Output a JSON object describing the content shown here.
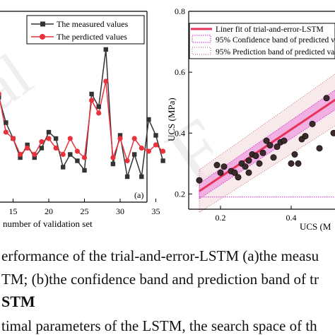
{
  "figure": {
    "left_panel": {
      "xlabel": "number of validation set",
      "xticks": [
        "15",
        "20",
        "25",
        "30",
        "35"
      ],
      "panel_label": "(a)",
      "legend": [
        "The measured values",
        "The perdicted values"
      ],
      "colors": {
        "measured": "#333333",
        "predicted": "#e8323c"
      }
    },
    "right_panel": {
      "ylabel": "UCS (MPa)",
      "xlabel": "UCS (M",
      "yticks": [
        "0.2",
        "0.4",
        "0.6",
        "0.8"
      ],
      "xticks": [
        "0.2",
        "0.4"
      ],
      "legend": [
        "Liner fit of trial-and-error-LSTM",
        "95% Confidence band of predicted v",
        "95% Prediction band of predicted valu"
      ],
      "colors": {
        "fit": "#e8325a",
        "confidence": "#d020d0",
        "prediction": "#c0505a",
        "points": "#3a2a2a"
      }
    }
  },
  "caption": {
    "line1": "erformance of the trial-and-error-LSTM (a)the measu",
    "line2": "TM; (b)the confidence band and prediction band of tr"
  },
  "section_heading": "STM",
  "body_text": "timal parameters of the LSTM, the search space of th",
  "chart_data": [
    {
      "type": "line",
      "xlabel": "number of validation set",
      "x": [
        13,
        14,
        15,
        16,
        17,
        18,
        19,
        20,
        21,
        22,
        23,
        24,
        25,
        26,
        27,
        28,
        29,
        30,
        31,
        32,
        33,
        34,
        35,
        36
      ],
      "series": [
        {
          "name": "The measured values",
          "values": [
            0.33,
            0.25,
            0.2,
            0.14,
            0.18,
            0.14,
            0.17,
            0.22,
            0.2,
            0.11,
            0.15,
            0.13,
            0.1,
            0.34,
            0.3,
            0.48,
            0.12,
            0.21,
            0.08,
            0.15,
            0.08,
            0.26,
            0.21,
            0.13
          ]
        },
        {
          "name": "The perdicted values",
          "values": [
            0.34,
            0.22,
            0.2,
            0.15,
            0.17,
            0.15,
            0.19,
            0.2,
            0.17,
            0.15,
            0.2,
            0.16,
            0.14,
            0.32,
            0.28,
            0.38,
            0.14,
            0.2,
            0.13,
            0.2,
            0.17,
            0.16,
            0.18,
            0.16
          ]
        }
      ]
    },
    {
      "type": "scatter",
      "xlabel": "UCS (M",
      "ylabel": "UCS (MPa)",
      "xlim": [
        0.11,
        0.65
      ],
      "ylim": [
        0.15,
        0.8
      ],
      "points": [
        [
          0.14,
          0.245
        ],
        [
          0.19,
          0.295
        ],
        [
          0.2,
          0.27
        ],
        [
          0.21,
          0.29
        ],
        [
          0.23,
          0.275
        ],
        [
          0.24,
          0.27
        ],
        [
          0.25,
          0.255
        ],
        [
          0.26,
          0.3
        ],
        [
          0.27,
          0.29
        ],
        [
          0.28,
          0.31
        ],
        [
          0.28,
          0.27
        ],
        [
          0.29,
          0.33
        ],
        [
          0.3,
          0.325
        ],
        [
          0.31,
          0.3
        ],
        [
          0.32,
          0.335
        ],
        [
          0.33,
          0.375
        ],
        [
          0.34,
          0.36
        ],
        [
          0.35,
          0.32
        ],
        [
          0.36,
          0.355
        ],
        [
          0.37,
          0.37
        ],
        [
          0.38,
          0.375
        ],
        [
          0.4,
          0.3
        ],
        [
          0.41,
          0.33
        ],
        [
          0.42,
          0.3
        ],
        [
          0.43,
          0.38
        ],
        [
          0.44,
          0.39
        ],
        [
          0.46,
          0.43
        ],
        [
          0.48,
          0.35
        ],
        [
          0.5,
          0.515
        ],
        [
          0.52,
          0.4
        ],
        [
          0.55,
          0.5
        ],
        [
          0.58,
          0.44
        ]
      ],
      "fit": {
        "slope": 0.78,
        "intercept": 0.1
      }
    }
  ]
}
